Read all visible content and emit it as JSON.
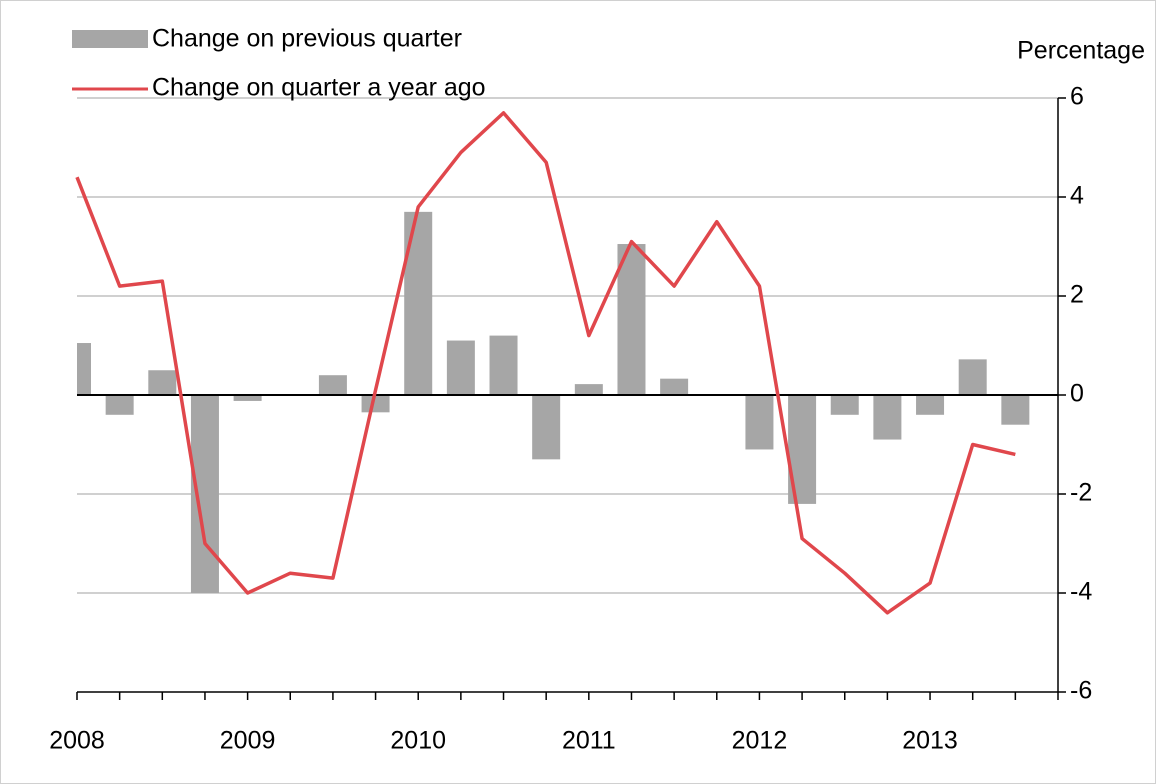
{
  "chart_data": {
    "type": "bar_line",
    "y_label": "Percentage",
    "categories": [
      "2008",
      null,
      null,
      null,
      "2009",
      null,
      null,
      null,
      "2010",
      null,
      null,
      null,
      "2011",
      null,
      null,
      null,
      "2012",
      null,
      null,
      null,
      "2013",
      null,
      null
    ],
    "series": [
      {
        "name": "Change on previous quarter",
        "type": "bar",
        "color": "#a6a6a6",
        "values": [
          1.05,
          -0.4,
          0.5,
          -4.0,
          -0.12,
          0,
          0.4,
          -0.35,
          3.7,
          1.1,
          1.2,
          -1.3,
          0.22,
          3.05,
          0.33,
          0,
          -1.1,
          -2.2,
          -0.4,
          -0.9,
          -0.4,
          0.72,
          -0.6
        ]
      },
      {
        "name": "Change on quarter a year ago",
        "type": "line",
        "color": "#e0474c",
        "values": [
          4.4,
          2.2,
          2.3,
          -3.0,
          -4.0,
          -3.6,
          -3.7,
          0.1,
          3.8,
          4.9,
          5.7,
          4.7,
          1.2,
          3.1,
          2.2,
          3.5,
          2.2,
          -2.9,
          -3.6,
          -4.4,
          -3.8,
          -1.0,
          -1.2
        ]
      }
    ],
    "ylim": [
      -6,
      6
    ],
    "yticks": [
      -6,
      -4,
      -2,
      0,
      2,
      4,
      6
    ],
    "grid": true
  }
}
